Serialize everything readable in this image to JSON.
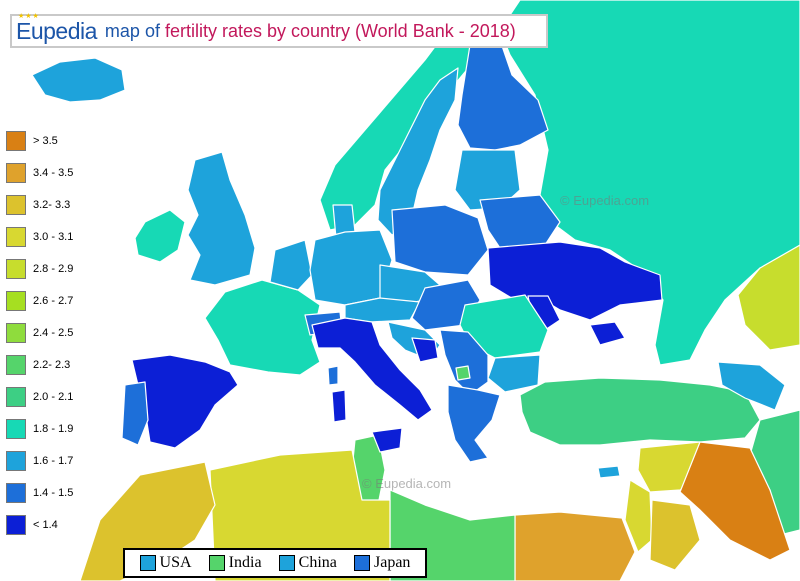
{
  "title": {
    "brand": "Eupedia",
    "prefix": "map of",
    "main": "fertility rates by country (World Bank - 2018)"
  },
  "legend": [
    {
      "label": "> 3.5",
      "color": "#d98014"
    },
    {
      "label": "3.4 - 3.5",
      "color": "#dfa22c"
    },
    {
      "label": "3.2- 3.3",
      "color": "#dcc22d"
    },
    {
      "label": "3.0 -  3.1",
      "color": "#d8d831"
    },
    {
      "label": "2.8 - 2.9",
      "color": "#c7dd2d"
    },
    {
      "label": "2.6 - 2.7",
      "color": "#a6df21"
    },
    {
      "label": "2.4 - 2.5",
      "color": "#8fdc3d"
    },
    {
      "label": "2.2- 2.3",
      "color": "#55d46b"
    },
    {
      "label": "2.0 -  2.1",
      "color": "#3dcf84"
    },
    {
      "label": "1.8 - 1.9",
      "color": "#17d9b5"
    },
    {
      "label": "1.6 - 1.7",
      "color": "#1ea3db"
    },
    {
      "label": "1.4 - 1.5",
      "color": "#1d6fd9"
    },
    {
      "label": "< 1.4",
      "color": "#0c1fd6"
    }
  ],
  "watermarks": [
    "© Eupedia.com",
    "©  Eupedia.com"
  ],
  "comparison": [
    {
      "label": "USA",
      "color": "#1ea3db"
    },
    {
      "label": "India",
      "color": "#55d46b"
    },
    {
      "label": "China",
      "color": "#1ea3db"
    },
    {
      "label": "Japan",
      "color": "#1d6fd9"
    }
  ]
}
